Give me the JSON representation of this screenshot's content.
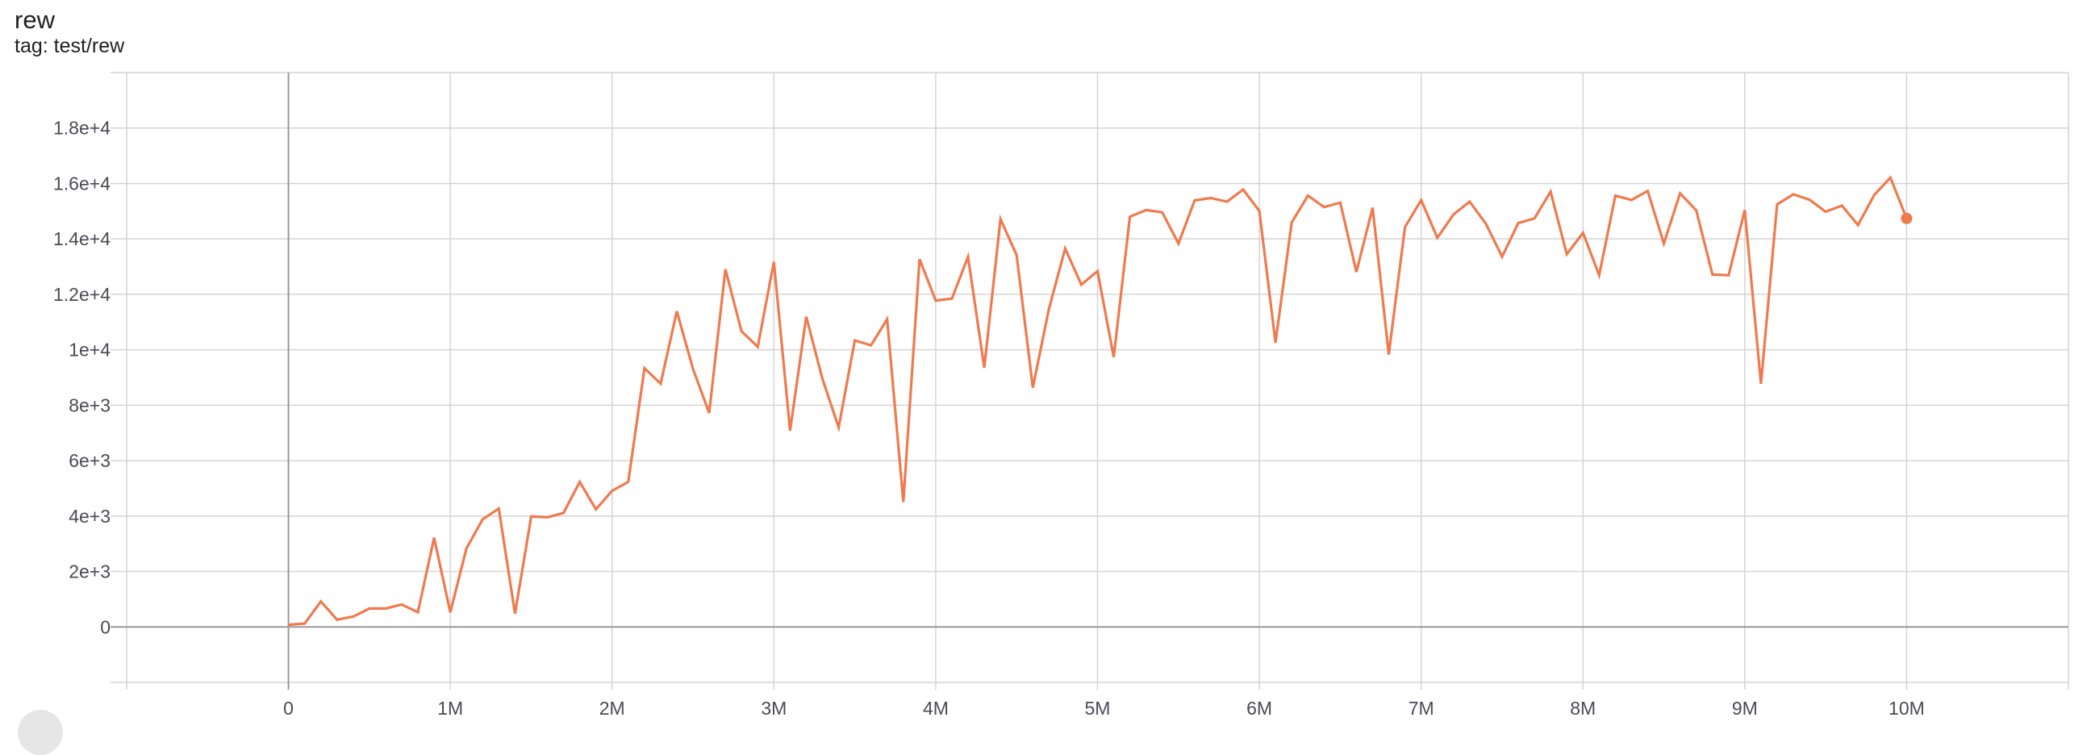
{
  "card": {
    "title": "rew",
    "subtitle": "tag: test/rew"
  },
  "chart_data": {
    "type": "line",
    "title": "rew",
    "subtitle": "tag: test/rew",
    "xlabel": "",
    "ylabel": "",
    "xlim": [
      -1000000,
      11000000
    ],
    "ylim": [
      -2000,
      20000
    ],
    "grid": true,
    "line_color": "#ef7a4e",
    "axis_color": "#999999",
    "grid_color": "#d4d4d4",
    "x_ticks": [
      0,
      1000000,
      2000000,
      3000000,
      4000000,
      5000000,
      6000000,
      7000000,
      8000000,
      9000000,
      10000000
    ],
    "x_tick_labels": [
      "0",
      "1M",
      "2M",
      "3M",
      "4M",
      "5M",
      "6M",
      "7M",
      "8M",
      "9M",
      "10M"
    ],
    "y_ticks": [
      0,
      2000,
      4000,
      6000,
      8000,
      10000,
      12000,
      14000,
      16000,
      18000
    ],
    "y_tick_labels": [
      "0",
      "2e+3",
      "4e+3",
      "6e+3",
      "8e+3",
      "1e+4",
      "1.2e+4",
      "1.4e+4",
      "1.6e+4",
      "1.8e+4"
    ],
    "series": [
      {
        "x_start": 0,
        "x_step": 100000,
        "values": [
          80,
          120,
          920,
          265,
          375,
          665,
          665,
          810,
          530,
          3220,
          530,
          2835,
          3885,
          4270,
          480,
          3990,
          3955,
          4115,
          5235,
          4245,
          4910,
          5235,
          9335,
          8780,
          11390,
          9310,
          7720,
          12905,
          10665,
          10110,
          13170,
          7080,
          11195,
          8950,
          7200,
          10340,
          10160,
          11100,
          4510,
          13270,
          11775,
          11845,
          13355,
          9350,
          14715,
          13415,
          8635,
          11480,
          13655,
          12350,
          12835,
          9735,
          14800,
          15040,
          14960,
          13835,
          15390,
          15475,
          15345,
          15780,
          15005,
          10255,
          14595,
          15560,
          15150,
          15310,
          12810,
          15125,
          9830,
          14425,
          15400,
          14040,
          14885,
          15345,
          14550,
          13355,
          14570,
          14740,
          15705,
          13450,
          14220,
          12690,
          15560,
          15405,
          15730,
          13835,
          15645,
          15030,
          12715,
          12690,
          15040,
          8770,
          15245,
          15610,
          15415,
          14980,
          15200,
          14500,
          15585,
          16210,
          14740
        ]
      }
    ]
  }
}
